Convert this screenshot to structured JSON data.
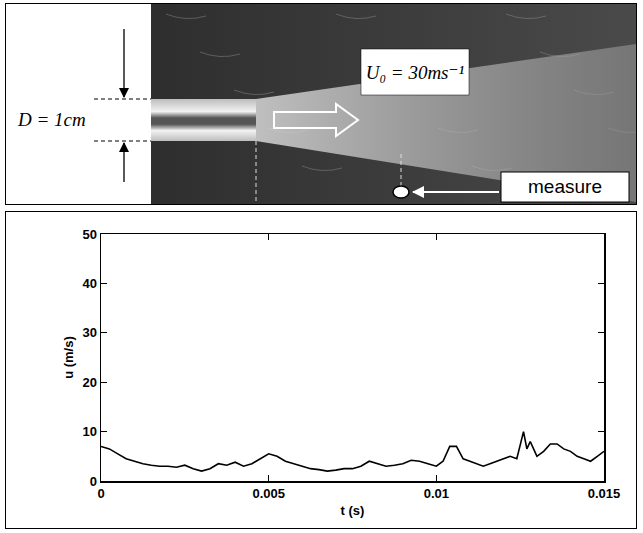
{
  "diagram": {
    "diameter_label": "D = 1cm",
    "velocity_label": "U₀ = 30ms⁻¹",
    "probe_label": "measure"
  },
  "chart_data": {
    "type": "line",
    "x_label": "t (s)",
    "y_label": "u (m/s)",
    "x": [
      0,
      0.00025,
      0.0005,
      0.00075,
      0.001,
      0.00125,
      0.0015,
      0.00175,
      0.002,
      0.00225,
      0.0025,
      0.00275,
      0.003,
      0.00325,
      0.0035,
      0.00375,
      0.004,
      0.00425,
      0.0045,
      0.00475,
      0.005,
      0.00525,
      0.0055,
      0.00575,
      0.006,
      0.00625,
      0.0065,
      0.00675,
      0.007,
      0.00725,
      0.0075,
      0.00775,
      0.008,
      0.00825,
      0.0085,
      0.00875,
      0.009,
      0.00925,
      0.0095,
      0.00975,
      0.01,
      0.0102,
      0.0104,
      0.0106,
      0.0108,
      0.011,
      0.0112,
      0.0114,
      0.0116,
      0.0118,
      0.012,
      0.0122,
      0.0124,
      0.0125,
      0.0126,
      0.0127,
      0.0128,
      0.0129,
      0.013,
      0.0132,
      0.0134,
      0.0136,
      0.0138,
      0.014,
      0.0142,
      0.0144,
      0.0146,
      0.0148,
      0.015
    ],
    "values": [
      7,
      6.5,
      5.5,
      4.5,
      4,
      3.5,
      3.2,
      3,
      3,
      2.8,
      3.2,
      2.5,
      2,
      2.5,
      3.5,
      3.2,
      3.8,
      3,
      3.5,
      4.5,
      5.5,
      5,
      4,
      3.5,
      3,
      2.5,
      2.3,
      2,
      2.2,
      2.5,
      2.5,
      3,
      4,
      3.5,
      3,
      3.2,
      3.5,
      4.2,
      4,
      3.5,
      3,
      4,
      7,
      7,
      4.5,
      4,
      3.5,
      3,
      3.5,
      4,
      4.5,
      5,
      4.5,
      7,
      10,
      6.5,
      8,
      6.5,
      5,
      6,
      7.5,
      7.5,
      6.5,
      6,
      5,
      4.5,
      4,
      5,
      6
    ],
    "color": "#000000",
    "xlim": [
      0,
      0.015
    ],
    "xticks": [
      0,
      0.005,
      0.01,
      0.015
    ],
    "ylim": [
      0,
      50
    ],
    "yticks": [
      0,
      10,
      20,
      30,
      40,
      50
    ],
    "grid": false
  }
}
